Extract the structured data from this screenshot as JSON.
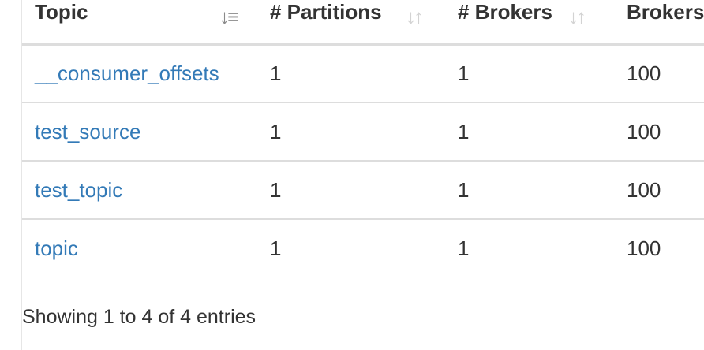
{
  "table": {
    "columns": [
      {
        "label": "Topic",
        "sort": "sort-amount-asc-icon"
      },
      {
        "label": "# Partitions",
        "sort": "sort-both-icon"
      },
      {
        "label": "# Brokers",
        "sort": "sort-both-icon"
      },
      {
        "label": "Brokers"
      }
    ],
    "rows": [
      {
        "topic": "__consumer_offsets",
        "partitions": "1",
        "brokers": "1",
        "spread": "100"
      },
      {
        "topic": "test_source",
        "partitions": "1",
        "brokers": "1",
        "spread": "100"
      },
      {
        "topic": "test_topic",
        "partitions": "1",
        "brokers": "1",
        "spread": "100"
      },
      {
        "topic": "topic",
        "partitions": "1",
        "brokers": "1",
        "spread": "100"
      }
    ]
  },
  "info": "Showing 1 to 4 of 4 entries",
  "colors": {
    "link": "#337ab7",
    "text": "#333333",
    "border": "#dddddd"
  }
}
